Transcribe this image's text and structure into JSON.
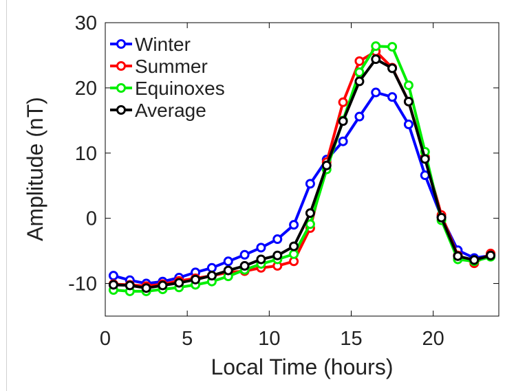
{
  "chart_data": {
    "type": "line",
    "title": "",
    "xlabel": "Local Time (hours)",
    "ylabel": "Amplitude (nT)",
    "xlim": [
      0,
      24
    ],
    "ylim": [
      -15,
      30
    ],
    "xticks": [
      0,
      5,
      10,
      15,
      20
    ],
    "yticks": [
      -10,
      0,
      10,
      20,
      30
    ],
    "grid": false,
    "legend_position": "top-left",
    "x": [
      0.5,
      1.5,
      2.5,
      3.5,
      4.5,
      5.5,
      6.5,
      7.5,
      8.5,
      9.5,
      10.5,
      11.5,
      12.5,
      13.5,
      14.5,
      15.5,
      16.5,
      17.5,
      18.5,
      19.5,
      20.5,
      21.5,
      22.5,
      23.5
    ],
    "series": [
      {
        "name": "Winter",
        "color": "#0000ff",
        "values": [
          -8.8,
          -9.5,
          -10.0,
          -9.7,
          -9.1,
          -8.3,
          -7.6,
          -6.6,
          -5.6,
          -4.5,
          -3.2,
          -1.0,
          5.3,
          9.0,
          11.8,
          15.6,
          19.3,
          18.6,
          14.4,
          6.6,
          0.2,
          -4.9,
          -6.1,
          -5.7
        ]
      },
      {
        "name": "Summer",
        "color": "#ff0000",
        "values": [
          -10.1,
          -10.2,
          -10.4,
          -10.1,
          -9.6,
          -9.2,
          -8.8,
          -8.3,
          -8.1,
          -7.6,
          -7.3,
          -6.6,
          -1.5,
          8.6,
          17.8,
          24.1,
          25.6,
          23.1,
          17.9,
          9.4,
          0.5,
          -5.7,
          -6.9,
          -5.4
        ]
      },
      {
        "name": "Equinoxes",
        "color": "#00ee00",
        "values": [
          -11.0,
          -11.2,
          -11.2,
          -10.9,
          -10.6,
          -10.2,
          -9.7,
          -8.9,
          -7.9,
          -7.0,
          -6.3,
          -5.5,
          -0.9,
          7.5,
          15.0,
          22.4,
          26.4,
          26.3,
          20.4,
          10.2,
          -0.3,
          -6.3,
          -6.6,
          -5.9
        ]
      },
      {
        "name": "Average",
        "color": "#000000",
        "values": [
          -10.2,
          -10.3,
          -10.7,
          -10.3,
          -9.9,
          -9.4,
          -8.8,
          -8.0,
          -7.3,
          -6.3,
          -5.7,
          -4.3,
          0.8,
          8.1,
          14.9,
          21.0,
          24.4,
          23.0,
          17.9,
          9.1,
          0.1,
          -5.8,
          -6.4,
          -5.7
        ]
      }
    ]
  }
}
